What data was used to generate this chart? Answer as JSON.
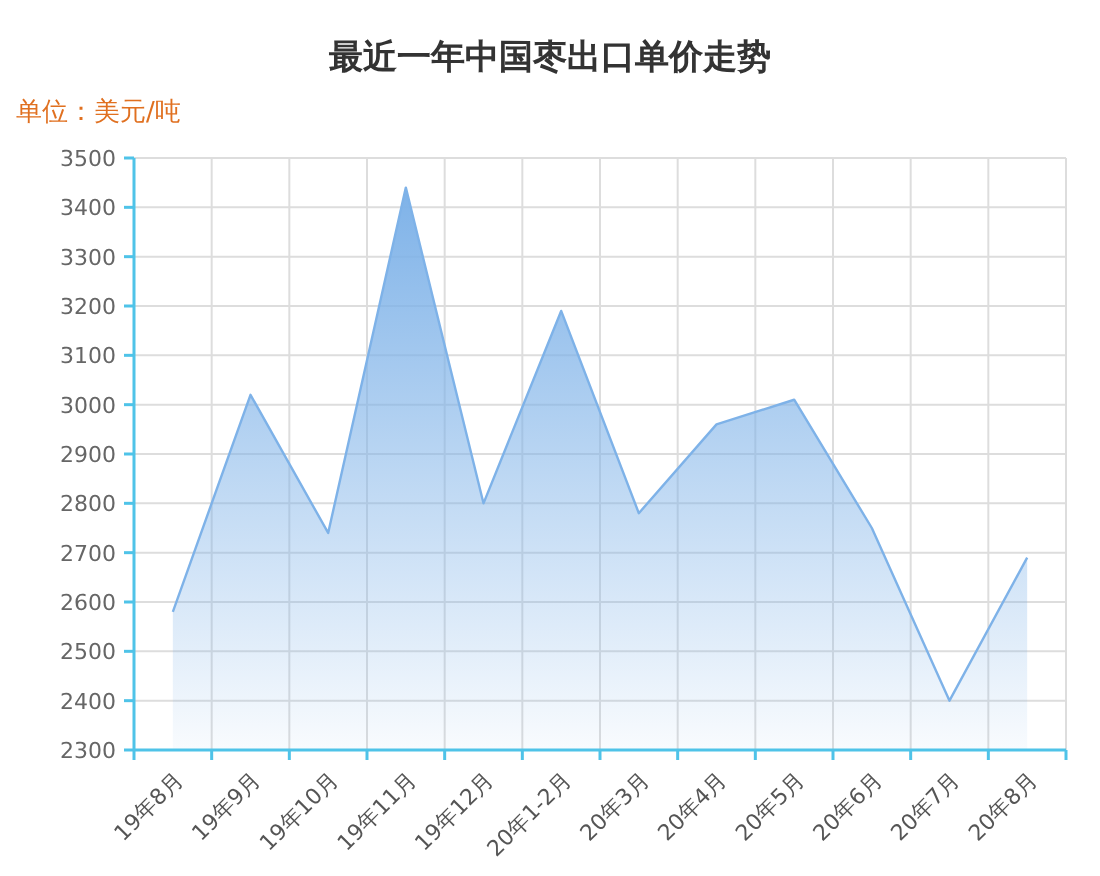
{
  "chart_data": {
    "type": "area",
    "title": "最近一年中国枣出口单价走势",
    "ylabel": "单位：美元/吨",
    "categories": [
      "19年8月",
      "19年9月",
      "19年10月",
      "19年11月",
      "19年12月",
      "20年1-2月",
      "20年3月",
      "20年4月",
      "20年5月",
      "20年6月",
      "20年7月",
      "20年8月"
    ],
    "series": [
      {
        "color": "#7eb2e8",
        "values": [
          2580,
          3020,
          2740,
          3440,
          2800,
          3190,
          2780,
          2960,
          3010,
          2750,
          2400,
          2690
        ]
      }
    ],
    "ylim": [
      2300,
      3500
    ],
    "yticks": [
      2300,
      2400,
      2500,
      2600,
      2700,
      2800,
      2900,
      3000,
      3100,
      3200,
      3300,
      3400,
      3500
    ],
    "grid": true,
    "marker": "none",
    "line_style": "solid"
  }
}
